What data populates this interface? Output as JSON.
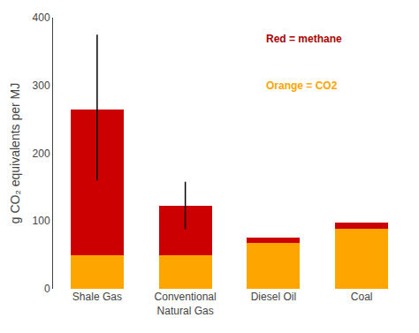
{
  "chart_data": {
    "type": "bar",
    "stacked": true,
    "ylabel": "g CO₂ equivalents per MJ",
    "categories": [
      "Shale Gas",
      "Conventional\nNatural Gas",
      "Diesel Oil",
      "Coal"
    ],
    "series": [
      {
        "color": "#FFA500",
        "values": [
          50,
          50,
          68,
          88
        ]
      },
      {
        "color": "#CC0000",
        "values": [
          215,
          73,
          8,
          10
        ],
        "error_low": [
          160,
          88,
          null,
          null
        ],
        "error_high": [
          375,
          158,
          null,
          null
        ]
      }
    ],
    "ylim": [
      0,
      400
    ],
    "yticks": [
      0,
      100,
      200,
      300,
      400
    ],
    "grid": false,
    "annotations": [
      {
        "text": "Red = methane",
        "color": "#AA0000"
      },
      {
        "text": "Orange = CO2",
        "color": "#FFA500"
      }
    ]
  }
}
